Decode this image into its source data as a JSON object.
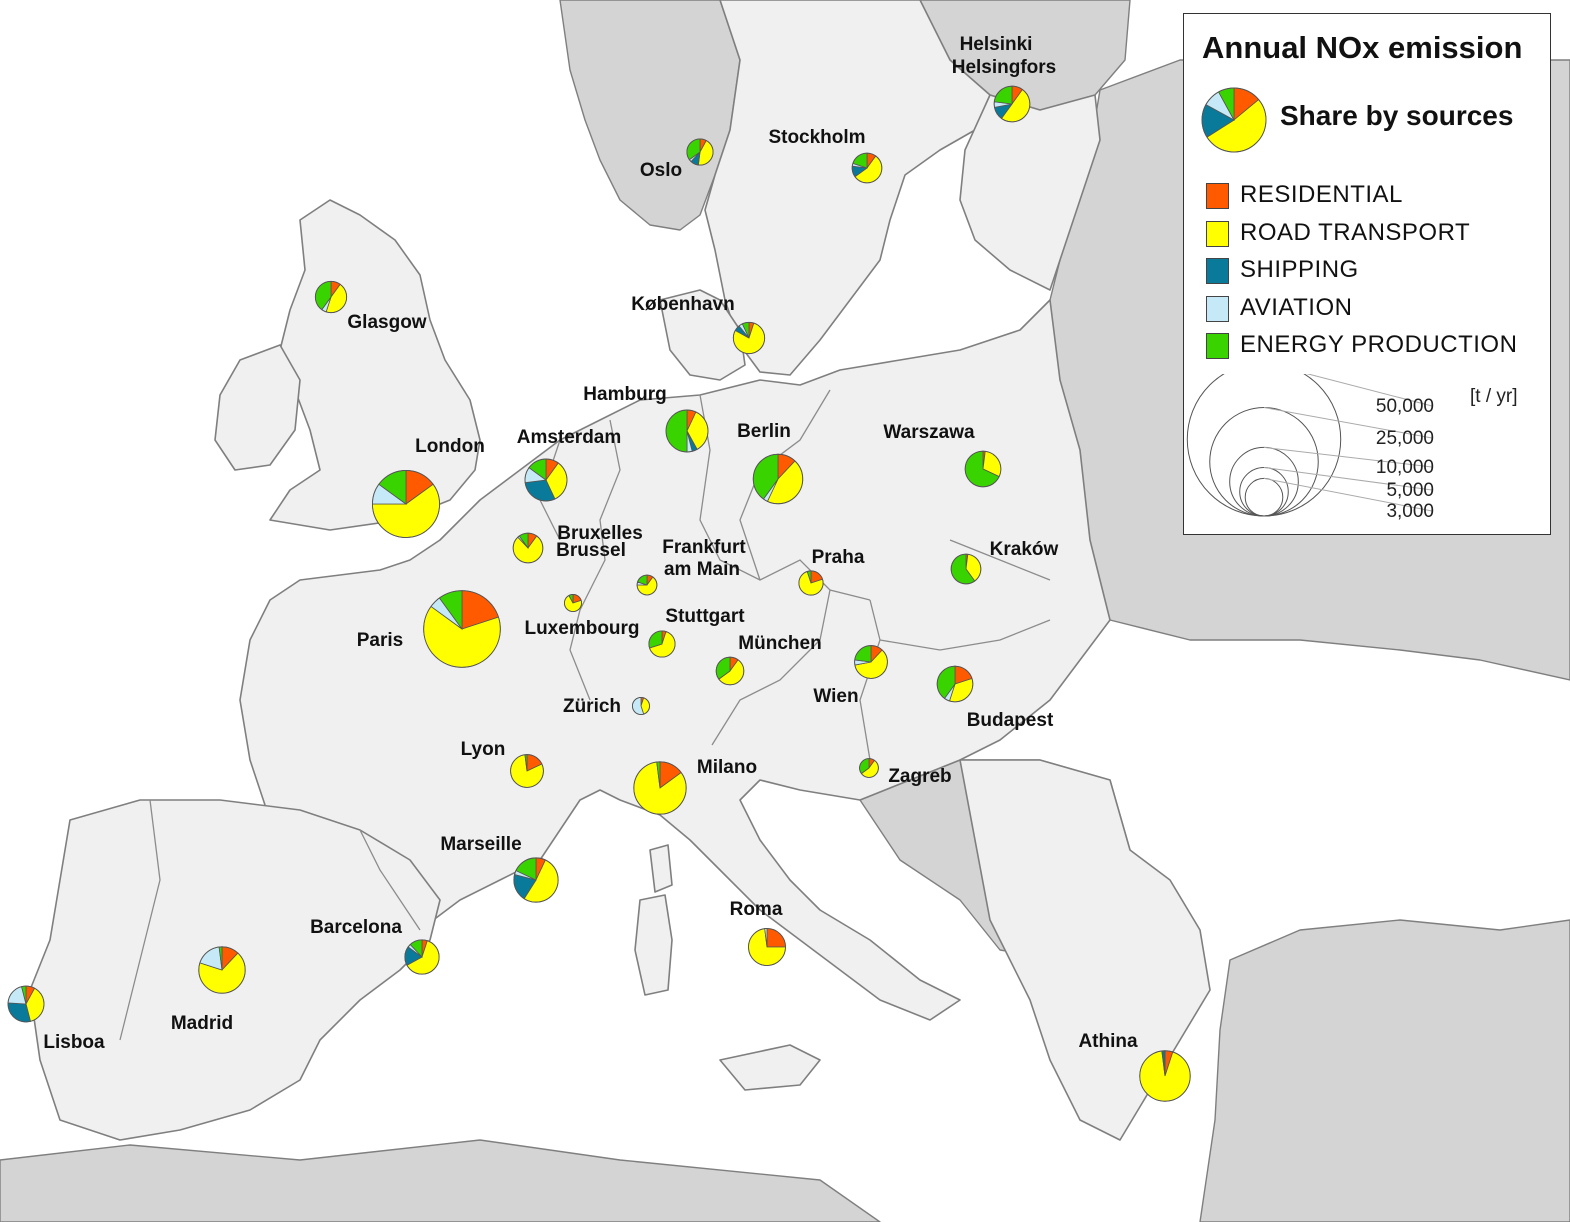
{
  "legend": {
    "title": "Annual NOx emission",
    "subtitle": "Share by sources",
    "unit": "[t / yr]",
    "sources": [
      {
        "label": "RESIDENTIAL",
        "color": "#ff5a00"
      },
      {
        "label": "ROAD TRANSPORT",
        "color": "#ffff00"
      },
      {
        "label": "SHIPPING",
        "color": "#0a7a9a"
      },
      {
        "label": "AVIATION",
        "color": "#c6e9f7"
      },
      {
        "label": "ENERGY PRODUCTION",
        "color": "#39d400"
      }
    ],
    "sample_shares": [
      0.14,
      0.52,
      0.17,
      0.09,
      0.08
    ],
    "size_classes": [
      {
        "label": "50,000",
        "value": 50000
      },
      {
        "label": "25,000",
        "value": 25000
      },
      {
        "label": "10,000",
        "value": 10000
      },
      {
        "label": "5,000",
        "value": 5000
      },
      {
        "label": "3,000",
        "value": 3000
      }
    ]
  },
  "colors": {
    "land": "#f0f0f0",
    "outside_land": "#d4d4d4",
    "sea": "#ffffff",
    "borders": "#7f7f7f"
  },
  "cities": [
    {
      "name": "Helsinki",
      "name2": "Helsingfors",
      "total": 6500,
      "shares": [
        0.1,
        0.5,
        0.12,
        0.05,
        0.23
      ]
    },
    {
      "name": "Oslo",
      "total": 3500,
      "shares": [
        0.08,
        0.44,
        0.1,
        0.03,
        0.35
      ]
    },
    {
      "name": "Stockholm",
      "total": 4500,
      "shares": [
        0.1,
        0.55,
        0.12,
        0.03,
        0.2
      ]
    },
    {
      "name": "Glasgow",
      "total": 5000,
      "shares": [
        0.1,
        0.45,
        0.0,
        0.05,
        0.4
      ]
    },
    {
      "name": "København",
      "total": 5000,
      "shares": [
        0.05,
        0.78,
        0.06,
        0.04,
        0.07
      ]
    },
    {
      "name": "Hamburg",
      "total": 9000,
      "shares": [
        0.07,
        0.35,
        0.04,
        0.04,
        0.5
      ]
    },
    {
      "name": "London",
      "total": 23000,
      "shares": [
        0.15,
        0.6,
        0.0,
        0.1,
        0.15
      ]
    },
    {
      "name": "Amsterdam",
      "total": 9000,
      "shares": [
        0.1,
        0.33,
        0.3,
        0.12,
        0.15
      ]
    },
    {
      "name": "Berlin",
      "total": 12500,
      "shares": [
        0.12,
        0.45,
        0.0,
        0.03,
        0.4
      ]
    },
    {
      "name": "Warszawa",
      "total": 6500,
      "shares": [
        0.02,
        0.3,
        0.0,
        0.0,
        0.68
      ]
    },
    {
      "name": "Bruxelles",
      "name2": "Brussel",
      "total": 4500,
      "shares": [
        0.1,
        0.78,
        0.0,
        0.02,
        0.1
      ]
    },
    {
      "name": "Frankfurt",
      "name2": "am Main",
      "total": 2000,
      "shares": [
        0.1,
        0.65,
        0.0,
        0.05,
        0.2
      ]
    },
    {
      "name": "Praha",
      "total": 3000,
      "shares": [
        0.2,
        0.75,
        0.0,
        0.0,
        0.05
      ]
    },
    {
      "name": "Kraków",
      "total": 4500,
      "shares": [
        0.02,
        0.38,
        0.0,
        0.0,
        0.6
      ]
    },
    {
      "name": "Paris",
      "total": 30000,
      "shares": [
        0.2,
        0.65,
        0.0,
        0.05,
        0.1
      ]
    },
    {
      "name": "Luxembourg",
      "total": 1500,
      "shares": [
        0.2,
        0.72,
        0.0,
        0.0,
        0.08
      ]
    },
    {
      "name": "Stuttgart",
      "total": 3500,
      "shares": [
        0.05,
        0.65,
        0.0,
        0.0,
        0.3
      ]
    },
    {
      "name": "München",
      "total": 3900,
      "shares": [
        0.1,
        0.55,
        0.0,
        0.0,
        0.35
      ]
    },
    {
      "name": "Wien",
      "total": 5500,
      "shares": [
        0.12,
        0.6,
        0.0,
        0.05,
        0.23
      ]
    },
    {
      "name": "Budapest",
      "total": 6500,
      "shares": [
        0.2,
        0.35,
        0.0,
        0.05,
        0.4
      ]
    },
    {
      "name": "Zürich",
      "total": 1500,
      "shares": [
        0.05,
        0.4,
        0.0,
        0.55,
        0.0
      ]
    },
    {
      "name": "Lyon",
      "total": 5500,
      "shares": [
        0.18,
        0.8,
        0.0,
        0.0,
        0.02
      ]
    },
    {
      "name": "Milano",
      "total": 14000,
      "shares": [
        0.15,
        0.83,
        0.0,
        0.0,
        0.02
      ]
    },
    {
      "name": "Zagreb",
      "total": 1800,
      "shares": [
        0.1,
        0.55,
        0.0,
        0.0,
        0.35
      ]
    },
    {
      "name": "Marseille",
      "total": 10000,
      "shares": [
        0.07,
        0.52,
        0.2,
        0.03,
        0.18
      ]
    },
    {
      "name": "Barcelona",
      "total": 6000,
      "shares": [
        0.05,
        0.62,
        0.18,
        0.03,
        0.12
      ]
    },
    {
      "name": "Roma",
      "total": 7000,
      "shares": [
        0.25,
        0.73,
        0.0,
        0.02,
        0.0
      ]
    },
    {
      "name": "Madrid",
      "total": 11000,
      "shares": [
        0.12,
        0.68,
        0.0,
        0.18,
        0.02
      ]
    },
    {
      "name": "Lisboa",
      "total": 6600,
      "shares": [
        0.08,
        0.38,
        0.3,
        0.2,
        0.04
      ]
    },
    {
      "name": "Athina",
      "total": 13000,
      "shares": [
        0.05,
        0.93,
        0.02,
        0.0,
        0.0
      ]
    }
  ]
}
